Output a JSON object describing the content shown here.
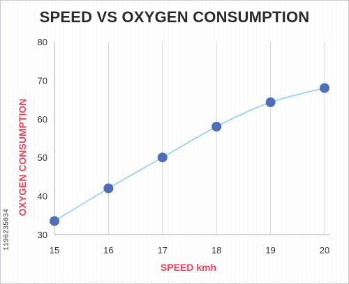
{
  "colors": {
    "title": "#2b2b2b",
    "axis_label": "#e8465c",
    "line": "#8fd0ee",
    "marker": "#4f6eb8",
    "grid": "#d4d6dc"
  },
  "watermark_id": "1196235034",
  "chart_data": {
    "type": "line",
    "title": "SPEED VS OXYGEN CONSUMPTION",
    "xlabel": "SPEED kmh",
    "ylabel": "OXYGEN CONSUMPTION",
    "x": [
      15,
      16,
      17,
      18,
      19,
      20
    ],
    "series": [
      {
        "values": [
          33.5,
          42,
          50,
          58,
          64.3,
          68
        ]
      }
    ],
    "x_ticks": [
      "15",
      "16",
      "17",
      "18",
      "19",
      "20"
    ],
    "y_ticks": [
      "30",
      "40",
      "50",
      "60",
      "70",
      "80"
    ],
    "xlim": [
      15,
      20
    ],
    "ylim": [
      30,
      80
    ],
    "grid": "vertical",
    "legend": "none",
    "marker": "circle",
    "line_style": "smooth"
  }
}
